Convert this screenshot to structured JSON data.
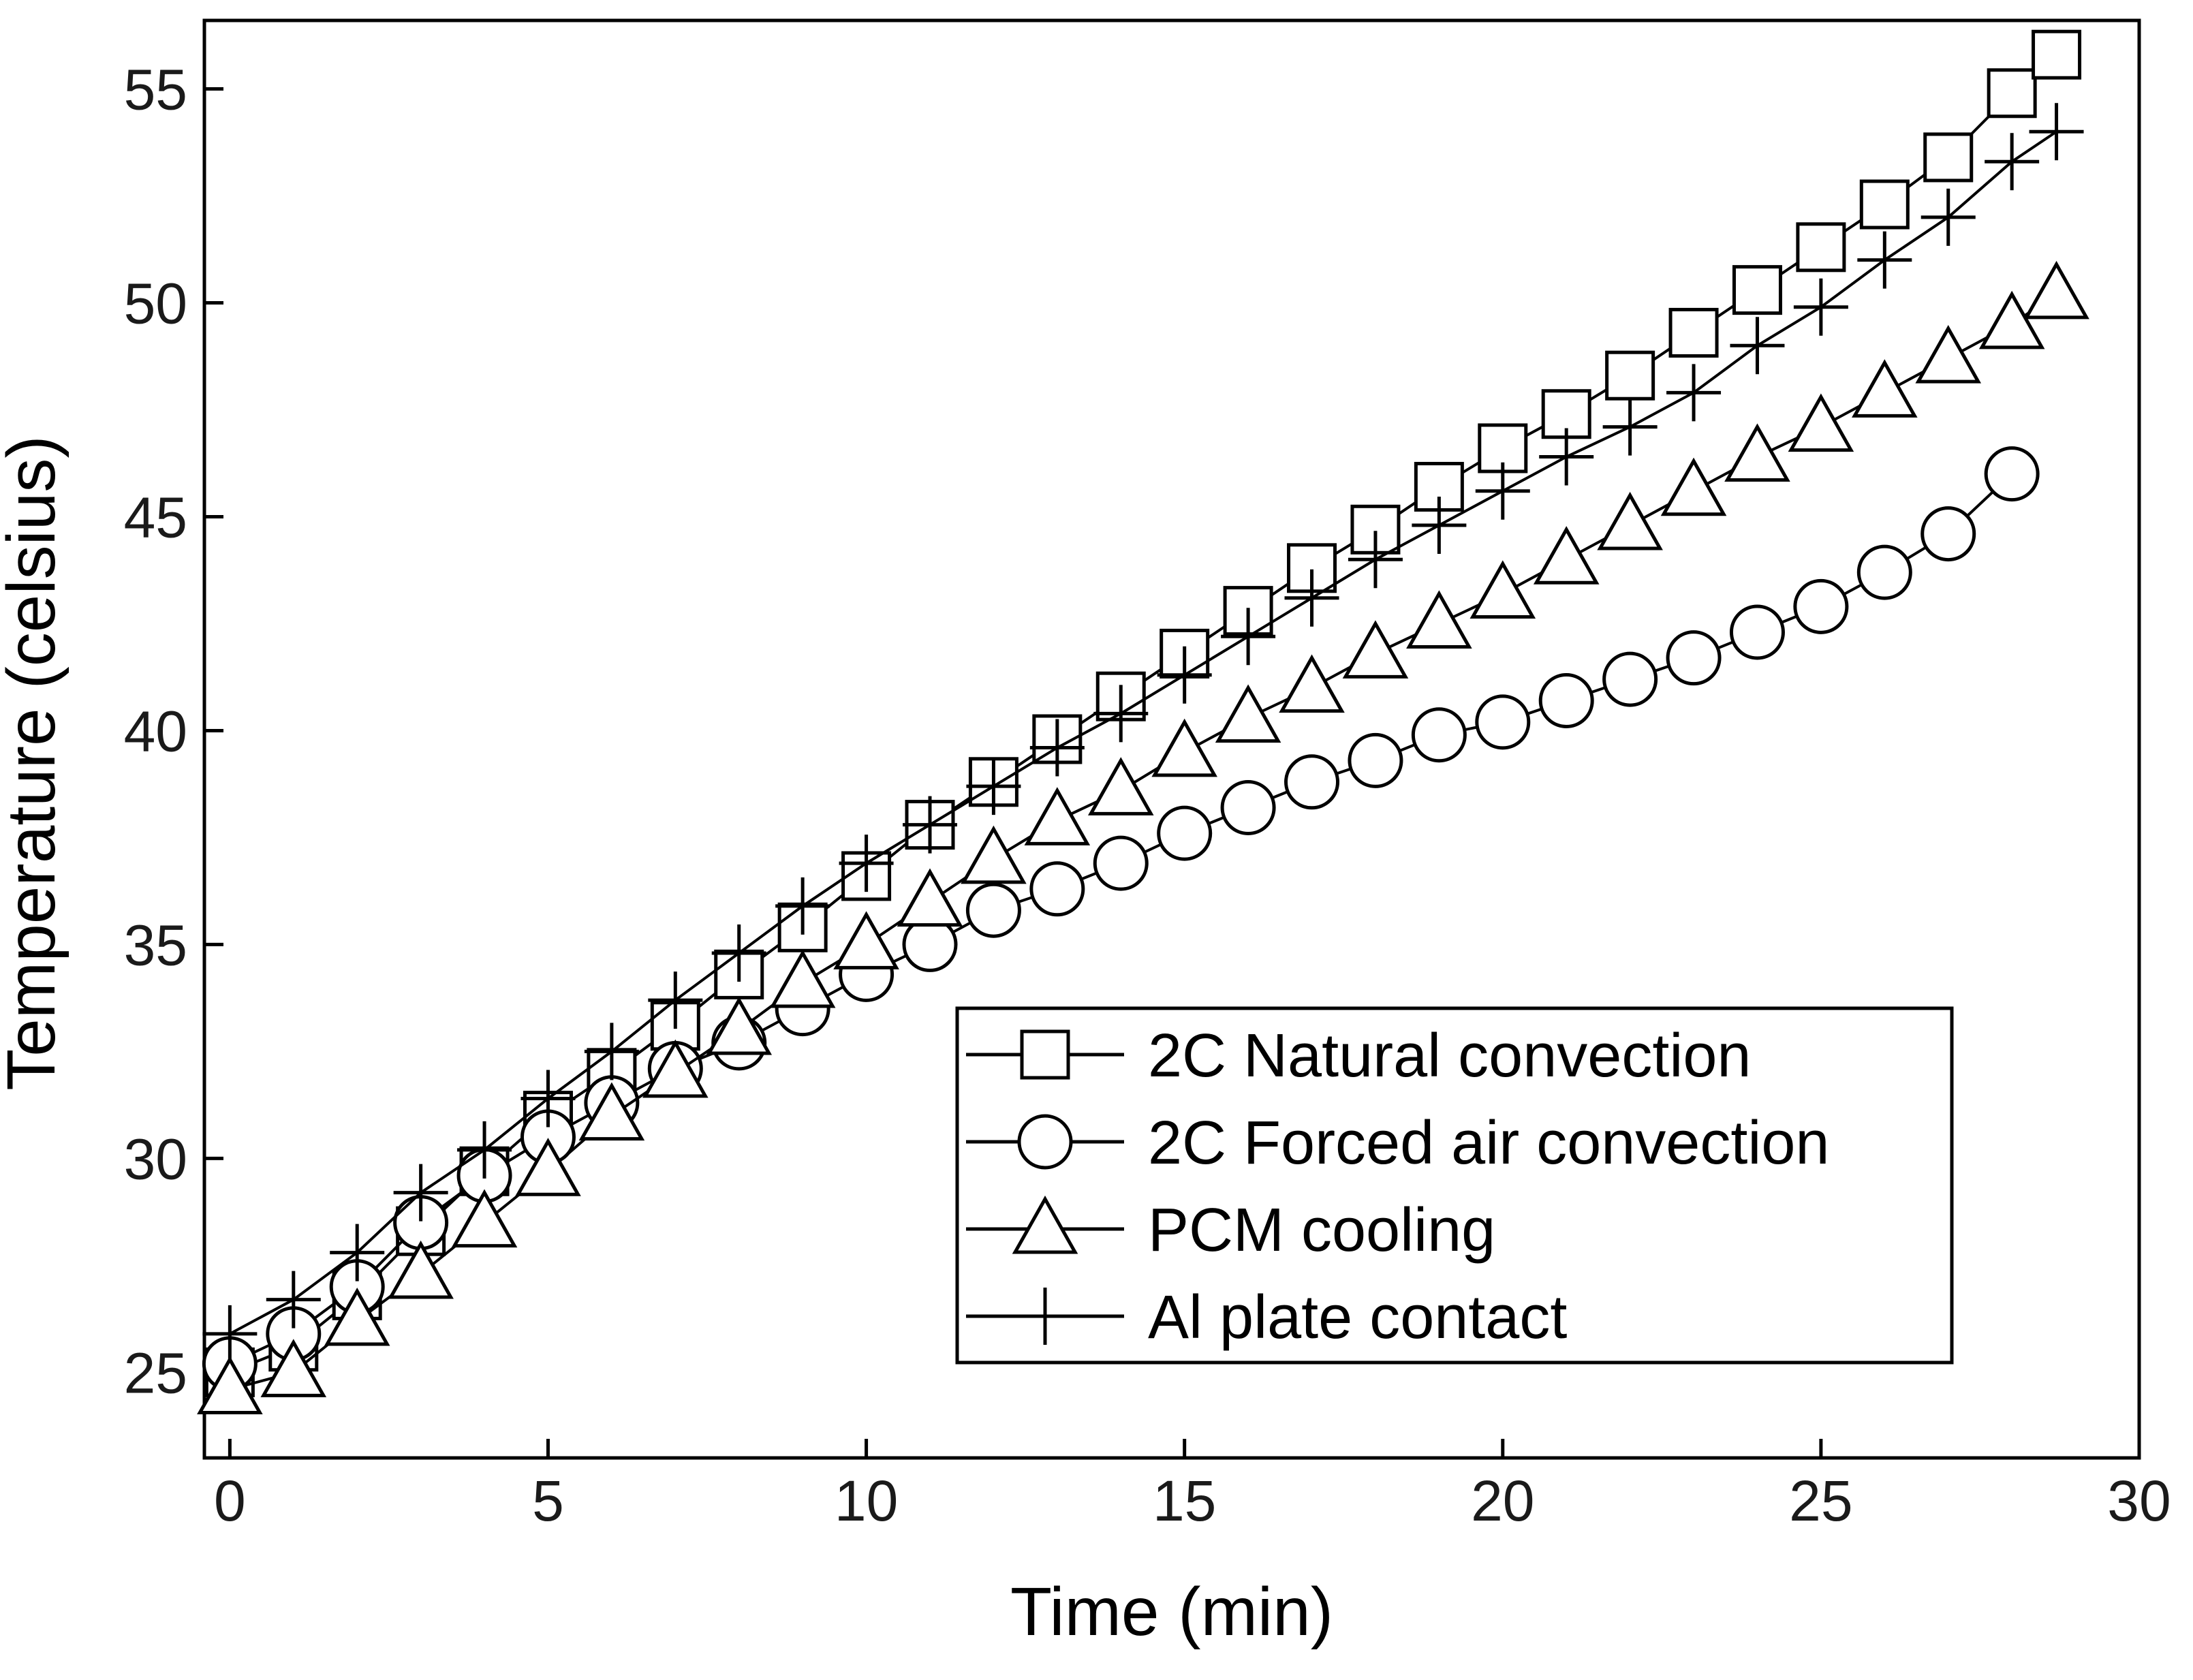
{
  "chart_data": {
    "type": "line",
    "title": "",
    "xlabel": "Time (min)",
    "ylabel": "Temperature (celsius)",
    "xlim": [
      -0.4,
      30.0
    ],
    "ylim": [
      23.0,
      56.6
    ],
    "xticks": [
      0,
      5,
      10,
      15,
      20,
      25,
      30
    ],
    "yticks": [
      25,
      30,
      35,
      40,
      45,
      50,
      55
    ],
    "xtick_labels": [
      "0",
      "5",
      "10",
      "15",
      "20",
      "25",
      "30"
    ],
    "ytick_labels": [
      "25",
      "30",
      "35",
      "40",
      "45",
      "50",
      "55"
    ],
    "grid": false,
    "legend_position": "bottom-right",
    "series": [
      {
        "name": "2C Natural convection",
        "marker": "square",
        "x": [
          0,
          1,
          2,
          3,
          4,
          5,
          6,
          7,
          8,
          9,
          10,
          11,
          12,
          13,
          14,
          15,
          16,
          17,
          18,
          19,
          20,
          21,
          22,
          23,
          24,
          25,
          26,
          27,
          28,
          28.7
        ],
        "y": [
          25.0,
          25.6,
          26.8,
          28.3,
          29.7,
          31.0,
          32.0,
          33.1,
          34.3,
          35.4,
          36.6,
          37.8,
          38.8,
          39.8,
          40.8,
          41.8,
          42.8,
          43.8,
          44.7,
          45.7,
          46.6,
          47.4,
          48.3,
          49.3,
          50.3,
          51.3,
          52.3,
          53.4,
          54.9,
          55.8
        ]
      },
      {
        "name": "2C Forced air convection",
        "marker": "circle",
        "x": [
          0,
          1,
          2,
          3,
          4,
          5,
          6,
          7,
          8,
          9,
          10,
          11,
          12,
          13,
          14,
          15,
          16,
          17,
          18,
          19,
          20,
          21,
          22,
          23,
          24,
          25,
          26,
          27,
          28
        ],
        "y": [
          25.2,
          25.9,
          27.0,
          28.5,
          29.6,
          30.5,
          31.3,
          32.1,
          32.7,
          33.5,
          34.3,
          35.0,
          35.8,
          36.3,
          36.9,
          37.6,
          38.2,
          38.8,
          39.3,
          39.9,
          40.2,
          40.7,
          41.2,
          41.7,
          42.3,
          42.9,
          43.7,
          44.6,
          46.0
        ]
      },
      {
        "name": "PCM cooling",
        "marker": "triangle",
        "x": [
          0,
          1,
          2,
          3,
          4,
          5,
          6,
          7,
          8,
          9,
          10,
          11,
          12,
          13,
          14,
          15,
          16,
          17,
          18,
          19,
          20,
          21,
          22,
          23,
          24,
          25,
          26,
          27,
          28,
          28.7
        ],
        "y": [
          24.6,
          25.0,
          26.2,
          27.3,
          28.5,
          29.7,
          31.0,
          32.0,
          33.0,
          34.1,
          35.0,
          36.0,
          37.0,
          37.9,
          38.6,
          39.5,
          40.3,
          41.0,
          41.8,
          42.5,
          43.2,
          44.0,
          44.8,
          45.6,
          46.4,
          47.1,
          47.9,
          48.7,
          49.5,
          50.2
        ]
      },
      {
        "name": "Al plate contact",
        "marker": "plus",
        "x": [
          0,
          1,
          2,
          3,
          4,
          5,
          6,
          7,
          8,
          9,
          10,
          11,
          12,
          13,
          14,
          15,
          16,
          17,
          18,
          19,
          20,
          21,
          22,
          23,
          24,
          25,
          26,
          27,
          28,
          28.7
        ],
        "y": [
          25.9,
          26.7,
          27.8,
          29.2,
          30.2,
          31.4,
          32.5,
          33.7,
          34.8,
          35.9,
          36.9,
          37.8,
          38.7,
          39.6,
          40.4,
          41.3,
          42.2,
          43.1,
          44.0,
          44.8,
          45.6,
          46.4,
          47.1,
          47.9,
          49.0,
          49.9,
          51.0,
          52.0,
          53.3,
          54.0
        ]
      }
    ]
  }
}
